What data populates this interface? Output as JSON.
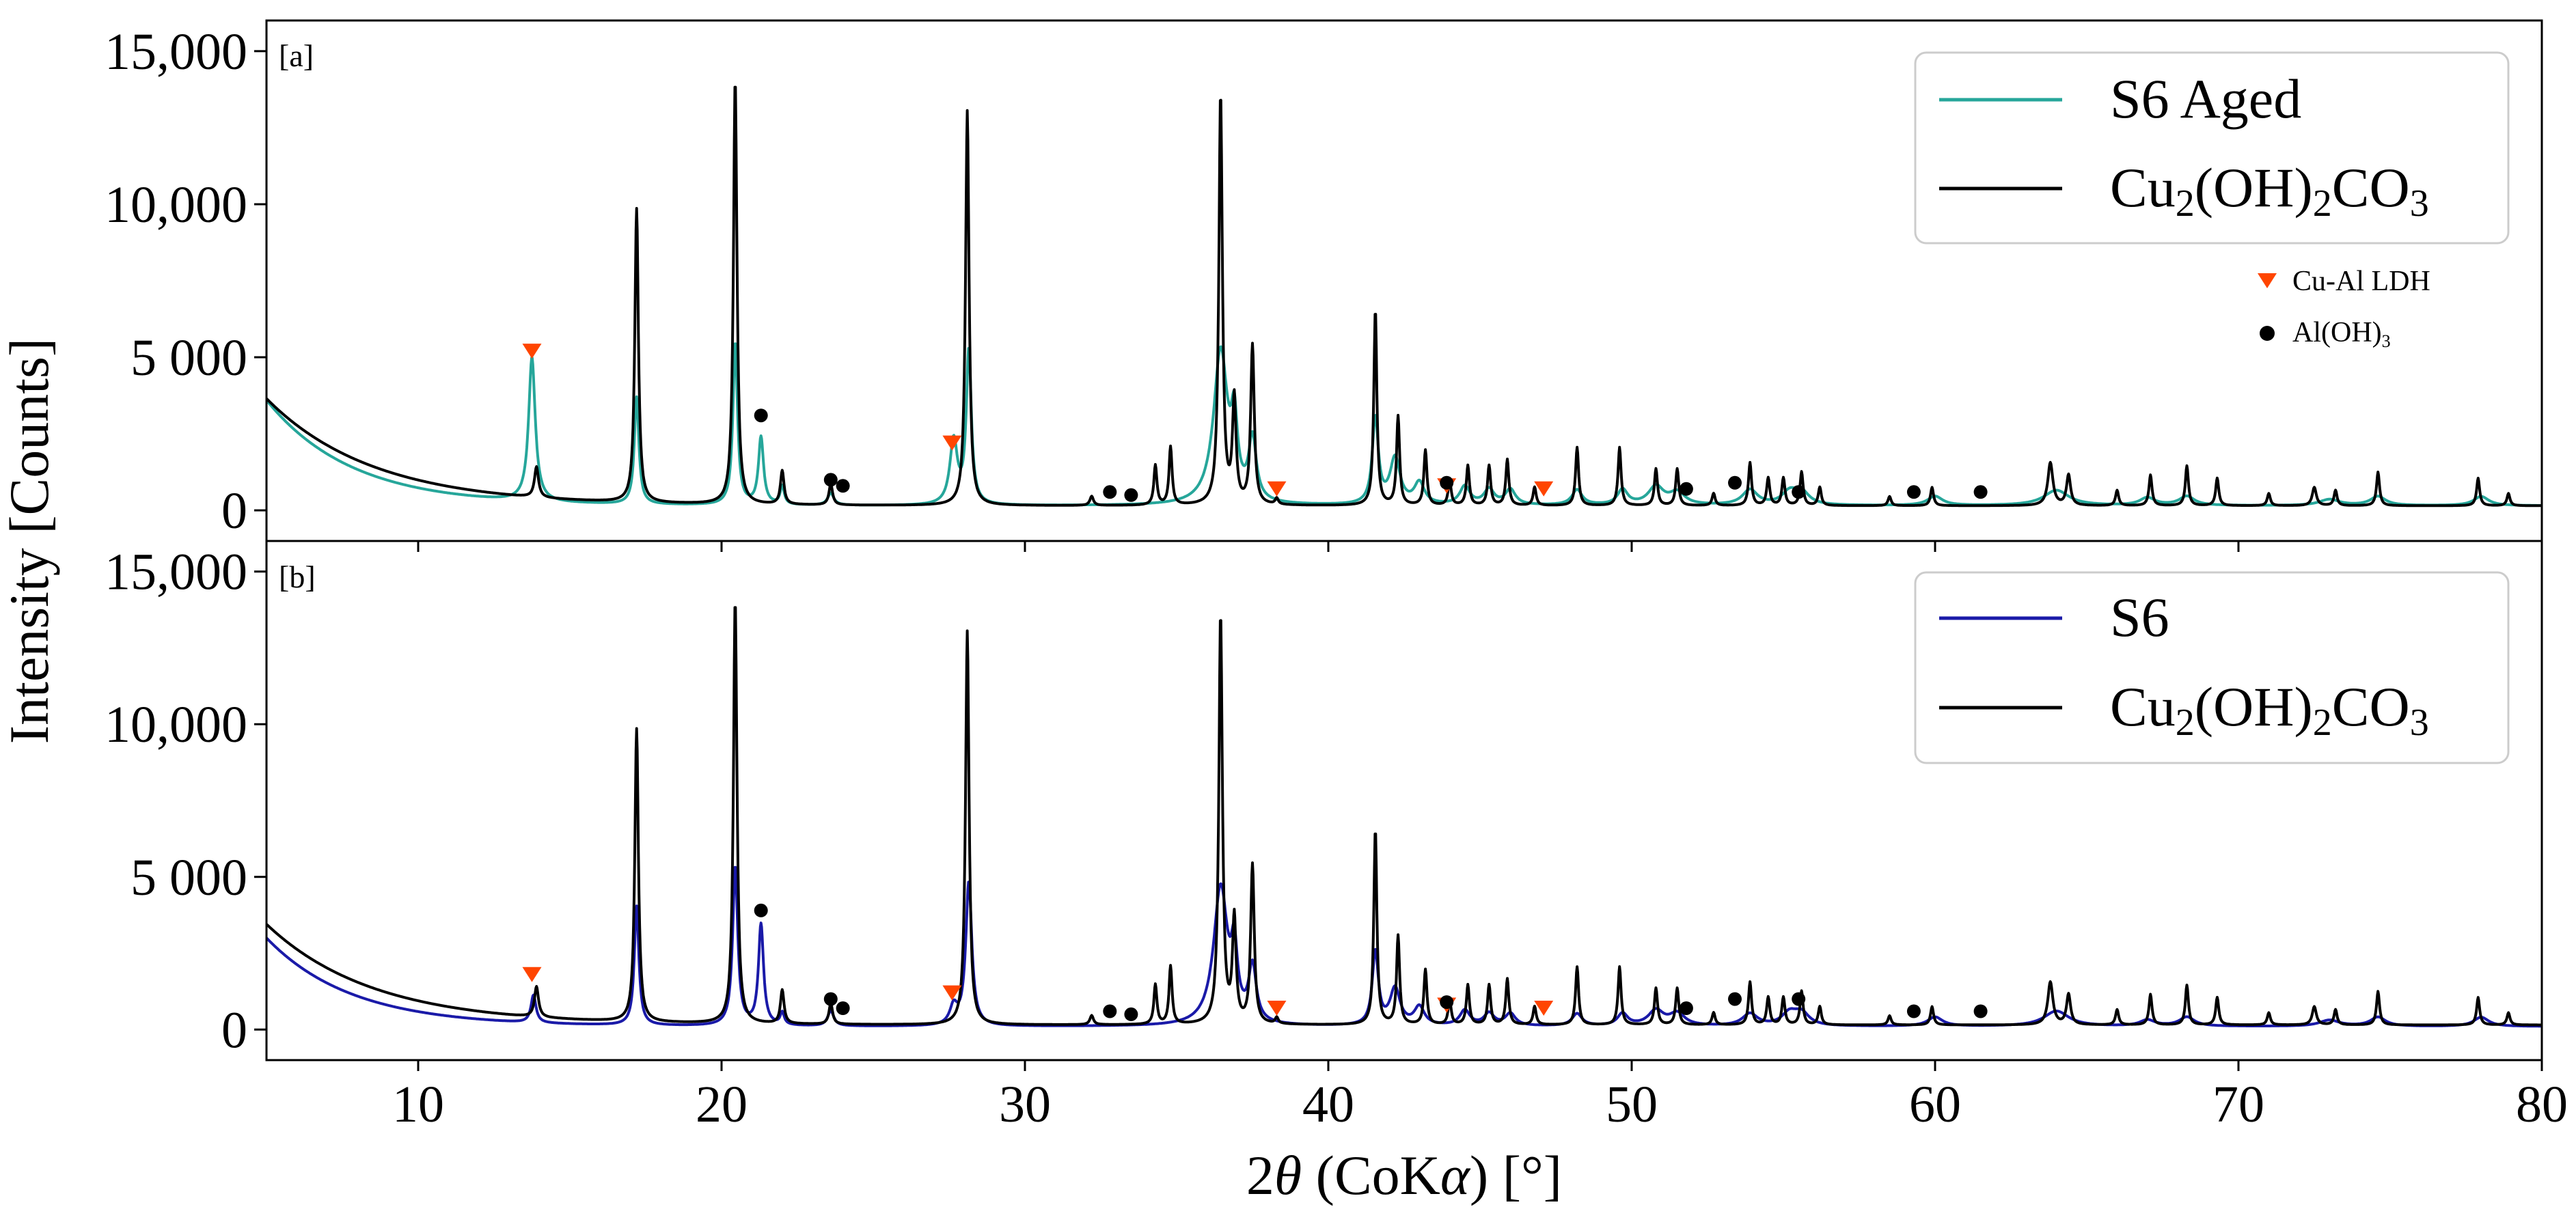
{
  "colors": {
    "aged": "#26A69A",
    "s6": "#1A1AA8",
    "reference": "#000000",
    "ldh_marker": "#FF4500",
    "aloh_marker": "#000000"
  },
  "axis": {
    "x_label_prefix": "2",
    "x_label_theta": "θ",
    "x_label_mid": " (CoK",
    "x_label_alpha": "α",
    "x_label_suffix": ") [°]",
    "y_label": "Intensity [Counts]",
    "x_ticks": [
      "10",
      "20",
      "30",
      "40",
      "50",
      "60",
      "70",
      "80"
    ],
    "y_ticks": [
      "0",
      "5 000",
      "10,000",
      "15,000"
    ]
  },
  "legend_markers": {
    "ldh_label": "Cu-Al LDH",
    "aloh_label_main": "Al(OH)",
    "aloh_label_sub": "3"
  },
  "chart_data": [
    {
      "type": "line",
      "panel_label": "[a]",
      "xlabel": "2θ (CoKα) [°]",
      "ylabel": "Intensity [Counts]",
      "xlim": [
        5,
        80
      ],
      "ylim": [
        -1000,
        16000
      ],
      "yticks": [
        0,
        5000,
        10000,
        15000
      ],
      "legend": [
        "S6 Aged",
        "Cu₂(OH)₂CO₃"
      ],
      "legend_text": {
        "sample": "S6 Aged",
        "ref_cu": "Cu",
        "ref_2a": "2",
        "ref_oh": "(OH)",
        "ref_2b": "2",
        "ref_co": "CO",
        "ref_3": "3"
      },
      "series": [
        {
          "name": "S6 Aged",
          "color": "#26A69A",
          "background": {
            "baseline": 150,
            "amplitude": 3450,
            "decay": 2.8
          },
          "peaks": [
            [
              13.75,
              4700,
              0.13
            ],
            [
              17.2,
              3500,
              0.09
            ],
            [
              20.45,
              5300,
              0.09
            ],
            [
              21.3,
              2200,
              0.1
            ],
            [
              22.0,
              600,
              0.08
            ],
            [
              23.6,
              400,
              0.12
            ],
            [
              27.65,
              2100,
              0.15
            ],
            [
              28.15,
              5000,
              0.1
            ],
            [
              36.45,
              5000,
              0.28
            ],
            [
              36.9,
              2200,
              0.12
            ],
            [
              37.5,
              2000,
              0.15
            ],
            [
              41.55,
              2800,
              0.12
            ],
            [
              42.2,
              1500,
              0.2
            ],
            [
              43.0,
              700,
              0.2
            ],
            [
              44.5,
              600,
              0.2
            ],
            [
              45.3,
              500,
              0.2
            ],
            [
              46.0,
              500,
              0.2
            ],
            [
              48.2,
              500,
              0.2
            ],
            [
              49.7,
              500,
              0.2
            ],
            [
              50.8,
              600,
              0.3
            ],
            [
              51.5,
              400,
              0.3
            ],
            [
              53.9,
              500,
              0.3
            ],
            [
              55.2,
              400,
              0.3
            ],
            [
              55.6,
              400,
              0.3
            ],
            [
              60.0,
              300,
              0.3
            ],
            [
              64.0,
              500,
              0.5
            ],
            [
              67.0,
              250,
              0.3
            ],
            [
              68.3,
              300,
              0.3
            ],
            [
              73.0,
              200,
              0.4
            ],
            [
              74.6,
              300,
              0.3
            ],
            [
              78.0,
              300,
              0.3
            ]
          ]
        },
        {
          "name": "Cu₂(OH)₂CO₃",
          "color": "#000000",
          "background": {
            "baseline": 150,
            "amplitude": 3500,
            "decay": 3.5
          },
          "peaks": [
            [
              13.9,
              1000,
              0.08
            ],
            [
              17.2,
              9600,
              0.07
            ],
            [
              20.45,
              13900,
              0.07
            ],
            [
              22.0,
              1100,
              0.07
            ],
            [
              23.6,
              700,
              0.07
            ],
            [
              28.1,
              12900,
              0.07
            ],
            [
              32.2,
              300,
              0.07
            ],
            [
              34.3,
              1300,
              0.06
            ],
            [
              34.8,
              1900,
              0.06
            ],
            [
              36.45,
              13400,
              0.07
            ],
            [
              36.9,
              3400,
              0.07
            ],
            [
              37.5,
              5200,
              0.07
            ],
            [
              38.3,
              200,
              0.06
            ],
            [
              41.55,
              6400,
              0.06
            ],
            [
              42.3,
              2900,
              0.06
            ],
            [
              43.2,
              1800,
              0.06
            ],
            [
              44.0,
              800,
              0.06
            ],
            [
              44.6,
              1300,
              0.06
            ],
            [
              45.3,
              1300,
              0.06
            ],
            [
              45.9,
              1500,
              0.06
            ],
            [
              46.8,
              600,
              0.06
            ],
            [
              48.2,
              1900,
              0.06
            ],
            [
              49.6,
              1900,
              0.06
            ],
            [
              50.8,
              1200,
              0.06
            ],
            [
              51.5,
              1200,
              0.06
            ],
            [
              52.7,
              400,
              0.06
            ],
            [
              53.9,
              1400,
              0.06
            ],
            [
              54.5,
              900,
              0.06
            ],
            [
              55.0,
              900,
              0.06
            ],
            [
              55.6,
              1100,
              0.06
            ],
            [
              56.2,
              600,
              0.06
            ],
            [
              58.5,
              300,
              0.06
            ],
            [
              59.9,
              600,
              0.06
            ],
            [
              63.8,
              1400,
              0.1
            ],
            [
              64.4,
              1000,
              0.08
            ],
            [
              66.0,
              500,
              0.06
            ],
            [
              67.1,
              1000,
              0.06
            ],
            [
              68.3,
              1300,
              0.06
            ],
            [
              69.3,
              900,
              0.06
            ],
            [
              71.0,
              400,
              0.06
            ],
            [
              72.5,
              600,
              0.08
            ],
            [
              73.2,
              500,
              0.06
            ],
            [
              74.6,
              1100,
              0.06
            ],
            [
              77.9,
              900,
              0.06
            ],
            [
              78.9,
              400,
              0.06
            ]
          ]
        }
      ],
      "markers": {
        "cu_al_ldh": [
          [
            13.75,
            5200
          ],
          [
            27.6,
            2200
          ],
          [
            38.3,
            700
          ],
          [
            43.9,
            800
          ],
          [
            47.1,
            700
          ]
        ],
        "aloh3": [
          [
            21.3,
            3100
          ],
          [
            23.6,
            1000
          ],
          [
            24.0,
            800
          ],
          [
            32.8,
            600
          ],
          [
            33.5,
            500
          ],
          [
            43.9,
            900
          ],
          [
            51.8,
            700
          ],
          [
            53.4,
            900
          ],
          [
            55.5,
            600
          ],
          [
            59.3,
            600
          ],
          [
            61.5,
            600
          ]
        ]
      }
    },
    {
      "type": "line",
      "panel_label": "[b]",
      "xlabel": "2θ (CoKα) [°]",
      "ylabel": "Intensity [Counts]",
      "xlim": [
        5,
        80
      ],
      "ylim": [
        -1000,
        16000
      ],
      "yticks": [
        0,
        5000,
        10000,
        15000
      ],
      "legend": [
        "S6",
        "Cu₂(OH)₂CO₃"
      ],
      "legend_text": {
        "sample": "S6",
        "ref_cu": "Cu",
        "ref_2a": "2",
        "ref_oh": "(OH)",
        "ref_2b": "2",
        "ref_co": "CO",
        "ref_3": "3"
      },
      "series": [
        {
          "name": "S6",
          "color": "#1A1AA8",
          "background": {
            "baseline": 100,
            "amplitude": 2900,
            "decay": 2.8
          },
          "peaks": [
            [
              13.8,
              900,
              0.1
            ],
            [
              17.2,
              3900,
              0.09
            ],
            [
              20.45,
              5200,
              0.1
            ],
            [
              21.3,
              3300,
              0.1
            ],
            [
              22.0,
              400,
              0.08
            ],
            [
              23.6,
              500,
              0.12
            ],
            [
              27.65,
              600,
              0.15
            ],
            [
              28.15,
              4700,
              0.12
            ],
            [
              36.45,
              4500,
              0.28
            ],
            [
              36.9,
              2000,
              0.12
            ],
            [
              37.5,
              1800,
              0.15
            ],
            [
              41.55,
              2400,
              0.12
            ],
            [
              42.2,
              1200,
              0.2
            ],
            [
              43.0,
              600,
              0.2
            ],
            [
              44.5,
              500,
              0.2
            ],
            [
              45.3,
              400,
              0.2
            ],
            [
              46.0,
              400,
              0.2
            ],
            [
              48.2,
              400,
              0.2
            ],
            [
              49.7,
              400,
              0.2
            ],
            [
              50.8,
              500,
              0.3
            ],
            [
              51.5,
              400,
              0.3
            ],
            [
              53.9,
              400,
              0.3
            ],
            [
              55.2,
              400,
              0.3
            ],
            [
              55.6,
              400,
              0.3
            ],
            [
              60.0,
              300,
              0.3
            ],
            [
              64.0,
              500,
              0.5
            ],
            [
              67.0,
              200,
              0.3
            ],
            [
              68.3,
              300,
              0.3
            ],
            [
              73.0,
              200,
              0.4
            ],
            [
              74.6,
              300,
              0.3
            ],
            [
              78.0,
              300,
              0.3
            ]
          ]
        },
        {
          "name": "Cu₂(OH)₂CO₃",
          "color": "#000000",
          "background": {
            "baseline": 150,
            "amplitude": 3300,
            "decay": 3.5
          },
          "peaks": [
            [
              13.9,
              1000,
              0.08
            ],
            [
              17.2,
              9600,
              0.07
            ],
            [
              20.45,
              13900,
              0.07
            ],
            [
              22.0,
              1100,
              0.07
            ],
            [
              23.6,
              700,
              0.07
            ],
            [
              28.1,
              12900,
              0.07
            ],
            [
              32.2,
              300,
              0.07
            ],
            [
              34.3,
              1300,
              0.06
            ],
            [
              34.8,
              1900,
              0.06
            ],
            [
              36.45,
              13400,
              0.07
            ],
            [
              36.9,
              3400,
              0.07
            ],
            [
              37.5,
              5200,
              0.07
            ],
            [
              38.3,
              200,
              0.06
            ],
            [
              41.55,
              6400,
              0.06
            ],
            [
              42.3,
              2900,
              0.06
            ],
            [
              43.2,
              1800,
              0.06
            ],
            [
              44.0,
              800,
              0.06
            ],
            [
              44.6,
              1300,
              0.06
            ],
            [
              45.3,
              1300,
              0.06
            ],
            [
              45.9,
              1500,
              0.06
            ],
            [
              46.8,
              600,
              0.06
            ],
            [
              48.2,
              1900,
              0.06
            ],
            [
              49.6,
              1900,
              0.06
            ],
            [
              50.8,
              1200,
              0.06
            ],
            [
              51.5,
              1200,
              0.06
            ],
            [
              52.7,
              400,
              0.06
            ],
            [
              53.9,
              1400,
              0.06
            ],
            [
              54.5,
              900,
              0.06
            ],
            [
              55.0,
              900,
              0.06
            ],
            [
              55.6,
              1100,
              0.06
            ],
            [
              56.2,
              600,
              0.06
            ],
            [
              58.5,
              300,
              0.06
            ],
            [
              59.9,
              600,
              0.06
            ],
            [
              63.8,
              1400,
              0.1
            ],
            [
              64.4,
              1000,
              0.08
            ],
            [
              66.0,
              500,
              0.06
            ],
            [
              67.1,
              1000,
              0.06
            ],
            [
              68.3,
              1300,
              0.06
            ],
            [
              69.3,
              900,
              0.06
            ],
            [
              71.0,
              400,
              0.06
            ],
            [
              72.5,
              600,
              0.08
            ],
            [
              73.2,
              500,
              0.06
            ],
            [
              74.6,
              1100,
              0.06
            ],
            [
              77.9,
              900,
              0.06
            ],
            [
              78.9,
              400,
              0.06
            ]
          ]
        }
      ],
      "markers": {
        "cu_al_ldh": [
          [
            13.75,
            1800
          ],
          [
            27.6,
            1200
          ],
          [
            38.3,
            700
          ],
          [
            43.9,
            800
          ],
          [
            47.1,
            700
          ]
        ],
        "aloh3": [
          [
            21.3,
            3900
          ],
          [
            23.6,
            1000
          ],
          [
            24.0,
            700
          ],
          [
            32.8,
            600
          ],
          [
            33.5,
            500
          ],
          [
            43.9,
            900
          ],
          [
            51.8,
            700
          ],
          [
            53.4,
            1000
          ],
          [
            55.5,
            1000
          ],
          [
            59.3,
            600
          ],
          [
            61.5,
            600
          ]
        ]
      }
    }
  ]
}
